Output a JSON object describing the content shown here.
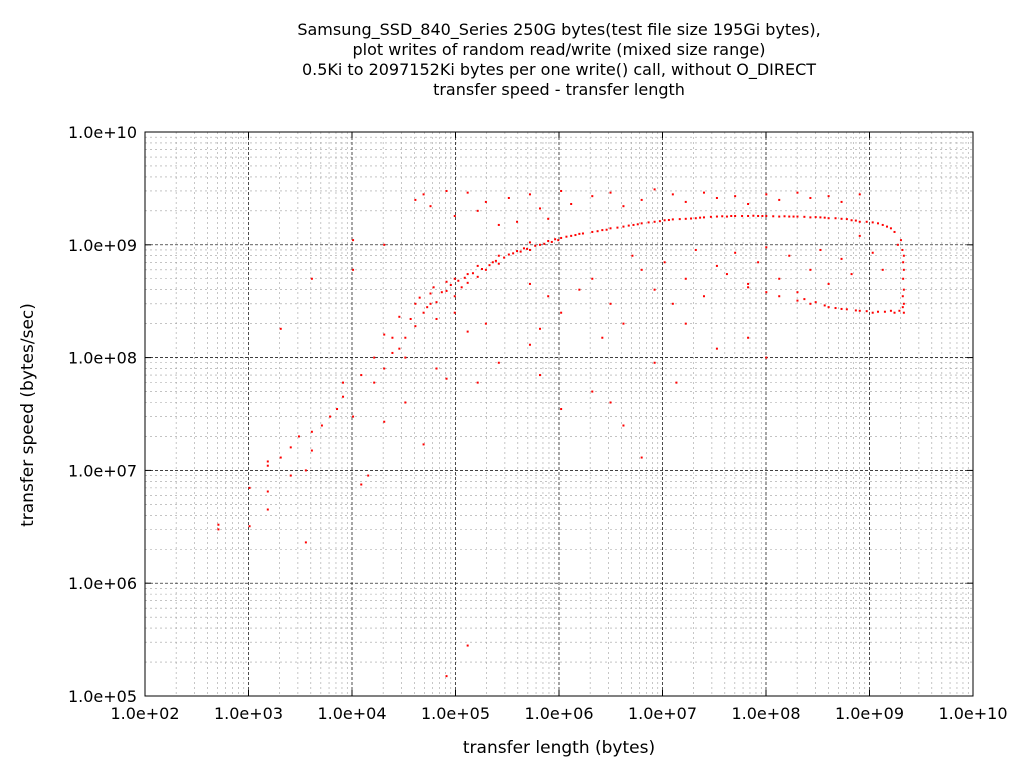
{
  "chart_data": {
    "type": "scatter",
    "title_lines": [
      "Samsung_SSD_840_Series 250G bytes(test file size 195Gi bytes),",
      "plot writes of random read/write (mixed size range)",
      "0.5Ki to 2097152Ki bytes per one write() call, without O_DIRECT",
      "transfer speed - transfer length"
    ],
    "xlabel": "transfer length (bytes)",
    "ylabel": "transfer speed (bytes/sec)",
    "xscale": "log",
    "yscale": "log",
    "xlim": [
      100,
      10000000000
    ],
    "ylim": [
      100000,
      10000000000
    ],
    "xticks": [
      "1.0e+02",
      "1.0e+03",
      "1.0e+04",
      "1.0e+05",
      "1.0e+06",
      "1.0e+07",
      "1.0e+08",
      "1.0e+09",
      "1.0e+10"
    ],
    "yticks": [
      "1.0e+05",
      "1.0e+06",
      "1.0e+07",
      "1.0e+08",
      "1.0e+09",
      "1.0e+10"
    ],
    "grid": true,
    "legend": "none",
    "point_color": "#ff0000",
    "points": [
      [
        512,
        3300000
      ],
      [
        512,
        3000000
      ],
      [
        1024,
        3200000
      ],
      [
        1024,
        7000000
      ],
      [
        1536,
        4500000
      ],
      [
        1536,
        6500000
      ],
      [
        1536,
        12000000
      ],
      [
        1536,
        11000000
      ],
      [
        2048,
        180000000
      ],
      [
        2048,
        13000000
      ],
      [
        2560,
        9000000
      ],
      [
        2560,
        16000000
      ],
      [
        3072,
        20000000
      ],
      [
        3584,
        2300000
      ],
      [
        3584,
        10000000
      ],
      [
        4096,
        15000000
      ],
      [
        4096,
        22000000
      ],
      [
        4096,
        500000000
      ],
      [
        5120,
        25000000
      ],
      [
        6144,
        30000000
      ],
      [
        7168,
        35000000
      ],
      [
        8192,
        45000000
      ],
      [
        8192,
        60000000
      ],
      [
        10240,
        1100000000
      ],
      [
        10240,
        600000000
      ],
      [
        10240,
        30000000
      ],
      [
        12288,
        70000000
      ],
      [
        14336,
        9000000
      ],
      [
        16384,
        100000000
      ],
      [
        16384,
        60000000
      ],
      [
        20480,
        80000000
      ],
      [
        20480,
        160000000
      ],
      [
        24576,
        110000000
      ],
      [
        28672,
        230000000
      ],
      [
        32768,
        150000000
      ],
      [
        32768,
        100000000
      ],
      [
        40960,
        190000000
      ],
      [
        40960,
        300000000
      ],
      [
        49152,
        250000000
      ],
      [
        57344,
        370000000
      ],
      [
        65536,
        310000000
      ],
      [
        65536,
        220000000
      ],
      [
        81920,
        390000000
      ],
      [
        81920,
        470000000
      ],
      [
        98304,
        350000000
      ],
      [
        98304,
        500000000
      ],
      [
        114688,
        420000000
      ],
      [
        131072,
        460000000
      ],
      [
        131072,
        550000000
      ],
      [
        163840,
        520000000
      ],
      [
        163840,
        650000000
      ],
      [
        196608,
        600000000
      ],
      [
        229376,
        700000000
      ],
      [
        262144,
        680000000
      ],
      [
        262144,
        800000000
      ],
      [
        327680,
        820000000
      ],
      [
        393216,
        880000000
      ],
      [
        458752,
        930000000
      ],
      [
        524288,
        900000000
      ],
      [
        524288,
        1050000000
      ],
      [
        655360,
        1000000000
      ],
      [
        786432,
        1080000000
      ],
      [
        917504,
        1120000000
      ],
      [
        1048576,
        1150000000
      ],
      [
        1310720,
        1200000000
      ],
      [
        1572864,
        1250000000
      ],
      [
        2097152,
        1300000000
      ],
      [
        2621440,
        1350000000
      ],
      [
        3145728,
        1400000000
      ],
      [
        4194304,
        1450000000
      ],
      [
        5242880,
        1500000000
      ],
      [
        6291456,
        1550000000
      ],
      [
        8388608,
        1600000000
      ],
      [
        10485760,
        1650000000
      ],
      [
        12582912,
        1680000000
      ],
      [
        16777216,
        1700000000
      ],
      [
        20971520,
        1720000000
      ],
      [
        25165824,
        1750000000
      ],
      [
        33554432,
        1780000000
      ],
      [
        41943040,
        1780000000
      ],
      [
        50331648,
        1800000000
      ],
      [
        67108864,
        1800000000
      ],
      [
        83886080,
        1800000000
      ],
      [
        100663296,
        1800000000
      ],
      [
        134217728,
        1780000000
      ],
      [
        167772160,
        1780000000
      ],
      [
        201326592,
        1780000000
      ],
      [
        268435456,
        1750000000
      ],
      [
        335544320,
        1750000000
      ],
      [
        402653184,
        1720000000
      ],
      [
        536870912,
        1700000000
      ],
      [
        671088640,
        1650000000
      ],
      [
        805306368,
        1600000000
      ],
      [
        1073741824,
        1580000000
      ],
      [
        1342177280,
        1500000000
      ],
      [
        1610612736,
        1400000000
      ],
      [
        2147483648,
        250000000
      ],
      [
        2147483648,
        300000000
      ],
      [
        2147483648,
        400000000
      ],
      [
        2147483648,
        600000000
      ],
      [
        2147483648,
        800000000
      ],
      [
        1879048192,
        1000000000
      ],
      [
        1610612736,
        260000000
      ],
      [
        1073741824,
        250000000
      ],
      [
        805306368,
        260000000
      ],
      [
        536870912,
        270000000
      ],
      [
        402653184,
        280000000
      ],
      [
        268435456,
        300000000
      ],
      [
        201326592,
        320000000
      ],
      [
        134217728,
        350000000
      ],
      [
        100663296,
        380000000
      ],
      [
        67108864,
        450000000
      ],
      [
        40960,
        2500000000
      ],
      [
        49152,
        2800000000
      ],
      [
        57344,
        2200000000
      ],
      [
        81920,
        3000000000
      ],
      [
        98304,
        1800000000
      ],
      [
        131072,
        2900000000
      ],
      [
        163840,
        2000000000
      ],
      [
        196608,
        2400000000
      ],
      [
        262144,
        1500000000
      ],
      [
        327680,
        2600000000
      ],
      [
        393216,
        1600000000
      ],
      [
        524288,
        2800000000
      ],
      [
        655360,
        2100000000
      ],
      [
        786432,
        1700000000
      ],
      [
        1048576,
        3000000000
      ],
      [
        1310720,
        2300000000
      ],
      [
        2097152,
        2700000000
      ],
      [
        3145728,
        2900000000
      ],
      [
        4194304,
        2200000000
      ],
      [
        6291456,
        2500000000
      ],
      [
        8388608,
        3100000000
      ],
      [
        12582912,
        2800000000
      ],
      [
        16777216,
        2400000000
      ],
      [
        25165824,
        2900000000
      ],
      [
        33554432,
        2600000000
      ],
      [
        50331648,
        2700000000
      ],
      [
        67108864,
        2300000000
      ],
      [
        100663296,
        2800000000
      ],
      [
        134217728,
        2500000000
      ],
      [
        201326592,
        2900000000
      ],
      [
        268435456,
        2600000000
      ],
      [
        402653184,
        2700000000
      ],
      [
        536870912,
        2400000000
      ],
      [
        805306368,
        2800000000
      ],
      [
        5120000,
        800000000
      ],
      [
        6291456,
        600000000
      ],
      [
        8388608,
        400000000
      ],
      [
        10485760,
        700000000
      ],
      [
        12582912,
        300000000
      ],
      [
        16777216,
        500000000
      ],
      [
        20971520,
        900000000
      ],
      [
        25165824,
        350000000
      ],
      [
        33554432,
        650000000
      ],
      [
        41943040,
        550000000
      ],
      [
        50331648,
        850000000
      ],
      [
        67108864,
        420000000
      ],
      [
        83886080,
        700000000
      ],
      [
        100663296,
        950000000
      ],
      [
        134217728,
        500000000
      ],
      [
        167772160,
        800000000
      ],
      [
        201326592,
        380000000
      ],
      [
        268435456,
        600000000
      ],
      [
        335544320,
        900000000
      ],
      [
        402653184,
        450000000
      ],
      [
        536870912,
        750000000
      ],
      [
        671088640,
        550000000
      ],
      [
        805306368,
        1200000000
      ],
      [
        1073741824,
        850000000
      ],
      [
        1342177280,
        600000000
      ],
      [
        2097152,
        500000000
      ],
      [
        3145728,
        300000000
      ],
      [
        4194304,
        200000000
      ],
      [
        1572864,
        400000000
      ],
      [
        2621440,
        150000000
      ],
      [
        1048576,
        250000000
      ],
      [
        786432,
        350000000
      ],
      [
        655360,
        180000000
      ],
      [
        524288,
        450000000
      ],
      [
        8388608,
        90000000
      ],
      [
        16777216,
        200000000
      ],
      [
        33554432,
        120000000
      ],
      [
        67108864,
        150000000
      ],
      [
        100663296,
        100000000
      ],
      [
        13631488,
        60000000
      ],
      [
        6291456,
        13000000
      ],
      [
        4194304,
        25000000
      ],
      [
        3145728,
        40000000
      ],
      [
        2097152,
        50000000
      ],
      [
        1048576,
        35000000
      ],
      [
        655360,
        70000000
      ],
      [
        524288,
        130000000
      ],
      [
        262144,
        90000000
      ],
      [
        196608,
        200000000
      ],
      [
        163840,
        60000000
      ],
      [
        131072,
        170000000
      ],
      [
        98304,
        250000000
      ],
      [
        81920,
        65000000
      ],
      [
        65536,
        80000000
      ],
      [
        57344,
        300000000
      ],
      [
        49152,
        17000000
      ],
      [
        32768,
        40000000
      ],
      [
        28672,
        120000000
      ],
      [
        20480,
        27000000
      ],
      [
        12288,
        7500000
      ],
      [
        131072,
        280000
      ],
      [
        81920,
        150000
      ],
      [
        20480,
        1000000000
      ],
      [
        24576,
        150000000
      ],
      [
        36864,
        220000000
      ],
      [
        45056,
        340000000
      ],
      [
        53248,
        280000000
      ],
      [
        61440,
        420000000
      ],
      [
        73728,
        380000000
      ],
      [
        90112,
        440000000
      ],
      [
        106496,
        480000000
      ],
      [
        122880,
        510000000
      ],
      [
        147456,
        560000000
      ],
      [
        180224,
        610000000
      ],
      [
        212992,
        660000000
      ],
      [
        245760,
        720000000
      ],
      [
        294912,
        770000000
      ],
      [
        360448,
        840000000
      ],
      [
        425984,
        870000000
      ],
      [
        491520,
        920000000
      ],
      [
        589824,
        980000000
      ],
      [
        720896,
        1020000000
      ],
      [
        851968,
        1060000000
      ],
      [
        983040,
        1100000000
      ],
      [
        1179648,
        1180000000
      ],
      [
        1441792,
        1220000000
      ],
      [
        1703936,
        1260000000
      ],
      [
        2359296,
        1320000000
      ],
      [
        2883584,
        1360000000
      ],
      [
        3670016,
        1420000000
      ],
      [
        4718592,
        1480000000
      ],
      [
        5767168,
        1520000000
      ],
      [
        7340032,
        1580000000
      ],
      [
        9437184,
        1620000000
      ],
      [
        11534336,
        1660000000
      ],
      [
        14680064,
        1690000000
      ],
      [
        18874368,
        1710000000
      ],
      [
        23068672,
        1740000000
      ],
      [
        29360128,
        1770000000
      ],
      [
        37748736,
        1790000000
      ],
      [
        46137344,
        1800000000
      ],
      [
        58720256,
        1800000000
      ],
      [
        75497472,
        1810000000
      ],
      [
        92274688,
        1800000000
      ],
      [
        117440512,
        1790000000
      ],
      [
        150994944,
        1790000000
      ],
      [
        184549376,
        1780000000
      ],
      [
        234881024,
        1770000000
      ],
      [
        301989888,
        1760000000
      ],
      [
        369098752,
        1740000000
      ],
      [
        469762048,
        1720000000
      ],
      [
        603979776,
        1690000000
      ],
      [
        738197504,
        1640000000
      ],
      [
        939524096,
        1600000000
      ],
      [
        1207959552,
        1550000000
      ],
      [
        1476395008,
        1450000000
      ],
      [
        1744830464,
        1300000000
      ],
      [
        2013265920,
        1100000000
      ],
      [
        2080374784,
        900000000
      ],
      [
        2113929216,
        700000000
      ],
      [
        2113929216,
        500000000
      ],
      [
        2097152000,
        350000000
      ],
      [
        2097152000,
        280000000
      ],
      [
        1946157056,
        260000000
      ],
      [
        1744830464,
        250000000
      ],
      [
        1409286144,
        255000000
      ],
      [
        1207959552,
        255000000
      ],
      [
        939524096,
        258000000
      ],
      [
        738197504,
        262000000
      ],
      [
        603979776,
        268000000
      ],
      [
        469762048,
        275000000
      ],
      [
        369098752,
        290000000
      ],
      [
        301989888,
        310000000
      ],
      [
        234881024,
        330000000
      ]
    ]
  }
}
